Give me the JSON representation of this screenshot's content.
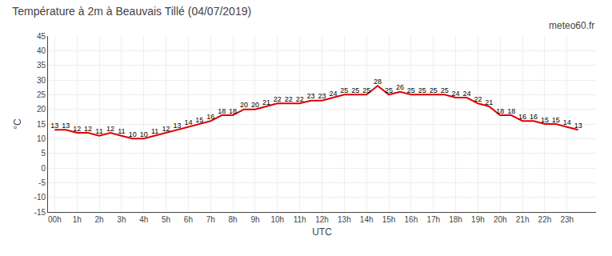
{
  "chart_data": {
    "type": "line",
    "title": "Température à 2m à Beauvais Tillé (04/07/2019)",
    "ylabel": "°C",
    "xlabel": "UTC",
    "annotations": [
      "meteo60.fr"
    ],
    "x": [
      0,
      0.5,
      1,
      1.5,
      2,
      2.5,
      3,
      3.5,
      4,
      4.5,
      5,
      5.5,
      6,
      6.5,
      7,
      7.5,
      8,
      8.5,
      9,
      9.5,
      10,
      10.5,
      11,
      11.5,
      12,
      12.5,
      13,
      13.5,
      14,
      14.5,
      15,
      15.5,
      16,
      16.5,
      17,
      17.5,
      18,
      18.5,
      19,
      19.5,
      20,
      20.5,
      21,
      21.5,
      22,
      22.5,
      23,
      23.5
    ],
    "values": [
      13,
      13,
      12,
      12,
      11,
      12,
      11,
      10,
      10,
      11,
      12,
      13,
      14,
      15,
      16,
      18,
      18,
      20,
      20,
      21,
      22,
      22,
      22,
      23,
      23,
      24,
      25,
      25,
      25,
      28,
      25,
      26,
      25,
      25,
      25,
      25,
      24,
      24,
      22,
      21,
      18,
      18,
      16,
      16,
      15,
      15,
      14,
      13
    ],
    "color": "#dd0000",
    "data_labels": true,
    "grid": true,
    "xlim": [
      -0.3,
      24.3
    ],
    "xticks": [
      {
        "value": 0,
        "label": "00h"
      },
      {
        "value": 1,
        "label": "1h"
      },
      {
        "value": 2,
        "label": "2h"
      },
      {
        "value": 3,
        "label": "3h"
      },
      {
        "value": 4,
        "label": "4h"
      },
      {
        "value": 5,
        "label": "5h"
      },
      {
        "value": 6,
        "label": "6h"
      },
      {
        "value": 7,
        "label": "7h"
      },
      {
        "value": 8,
        "label": "8h"
      },
      {
        "value": 9,
        "label": "9h"
      },
      {
        "value": 10,
        "label": "10h"
      },
      {
        "value": 11,
        "label": "11h"
      },
      {
        "value": 12,
        "label": "12h"
      },
      {
        "value": 13,
        "label": "13h"
      },
      {
        "value": 14,
        "label": "14h"
      },
      {
        "value": 15,
        "label": "15h"
      },
      {
        "value": 16,
        "label": "16h"
      },
      {
        "value": 17,
        "label": "17h"
      },
      {
        "value": 18,
        "label": "18h"
      },
      {
        "value": 19,
        "label": "19h"
      },
      {
        "value": 20,
        "label": "20h"
      },
      {
        "value": 21,
        "label": "21h"
      },
      {
        "value": 22,
        "label": "22h"
      },
      {
        "value": 23,
        "label": "23h"
      }
    ],
    "ylim": [
      -15,
      45
    ],
    "yticks": [
      -15,
      -10,
      -5,
      0,
      5,
      10,
      15,
      20,
      25,
      30,
      35,
      40,
      45
    ]
  }
}
